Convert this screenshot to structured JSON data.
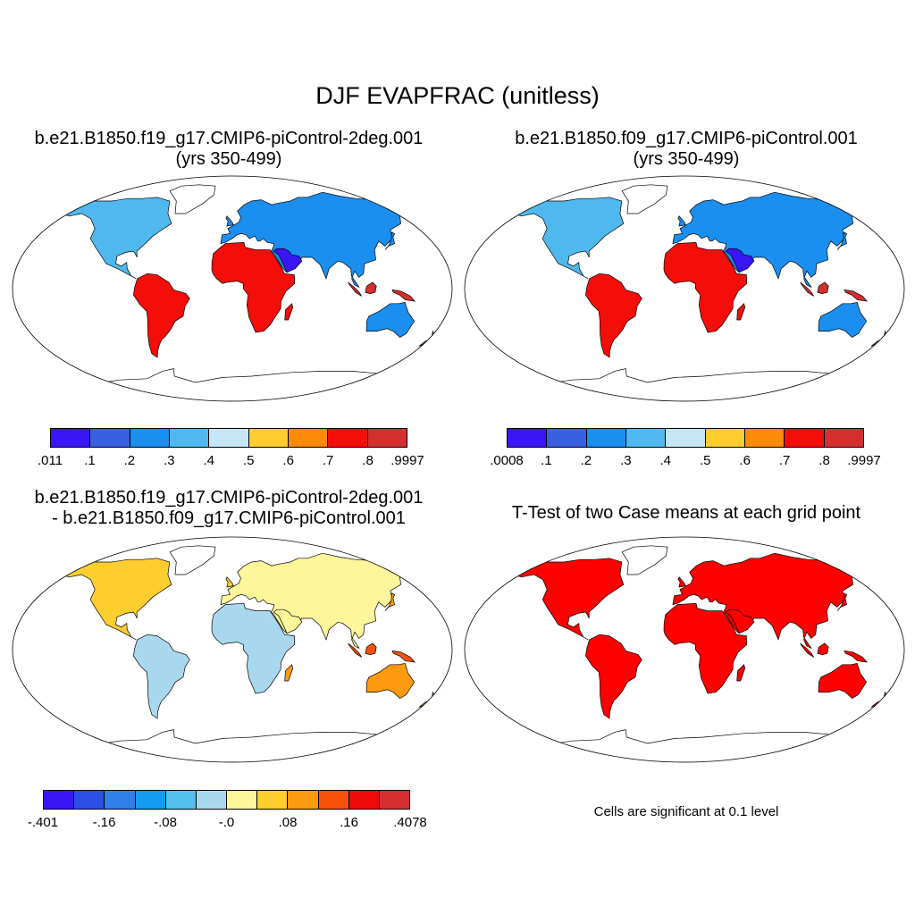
{
  "main_title": "DJF EVAPFRAC (unitless)",
  "panels": [
    {
      "title_line1": "b.e21.B1850.f19_g17.CMIP6-piControl-2deg.001",
      "title_line2": "(yrs 350-499)"
    },
    {
      "title_line1": "b.e21.B1850.f09_g17.CMIP6-piControl.001",
      "title_line2": "(yrs 350-499)"
    },
    {
      "title_line1": "b.e21.B1850.f19_g17.CMIP6-piControl-2deg.001",
      "title_line2": "- b.e21.B1850.f09_g17.CMIP6-piControl.001"
    },
    {
      "title_line1": "T-Test of two Case means at each grid point"
    }
  ],
  "colorbars": [
    {
      "colors": [
        "#3a16f5",
        "#3860e0",
        "#1a8ff0",
        "#4fb9ef",
        "#c6e6f8",
        "#fdcc2e",
        "#fe8a0a",
        "#f50d0a",
        "#d32f2f"
      ],
      "labels": [
        ".011",
        ".1",
        ".2",
        ".3",
        ".4",
        ".5",
        ".6",
        ".7",
        ".8",
        ".9997"
      ]
    },
    {
      "colors": [
        "#3a16f5",
        "#3860e0",
        "#1a8ff0",
        "#4fb9ef",
        "#c6e6f8",
        "#fdcc2e",
        "#fe8a0a",
        "#f50d0a",
        "#d32f2f"
      ],
      "labels": [
        ".0008",
        ".1",
        ".2",
        ".3",
        ".4",
        ".5",
        ".6",
        ".7",
        ".8",
        ".9997"
      ]
    },
    {
      "colors": [
        "#3a16f5",
        "#2c4fe6",
        "#3080ea",
        "#149cf0",
        "#53c0f0",
        "#a9d8ee",
        "#fff59a",
        "#fecd2e",
        "#fd9a10",
        "#f8500a",
        "#f00a0a",
        "#d32f2f"
      ],
      "labels": [
        "-.401",
        "-.16",
        "-.08",
        "-.0",
        ".08",
        ".16",
        ".4078"
      ]
    }
  ],
  "significance_note": "Cells are significant at 0.1 level",
  "colors": {
    "significant": "#ff0000",
    "land_outline": "#000000"
  }
}
